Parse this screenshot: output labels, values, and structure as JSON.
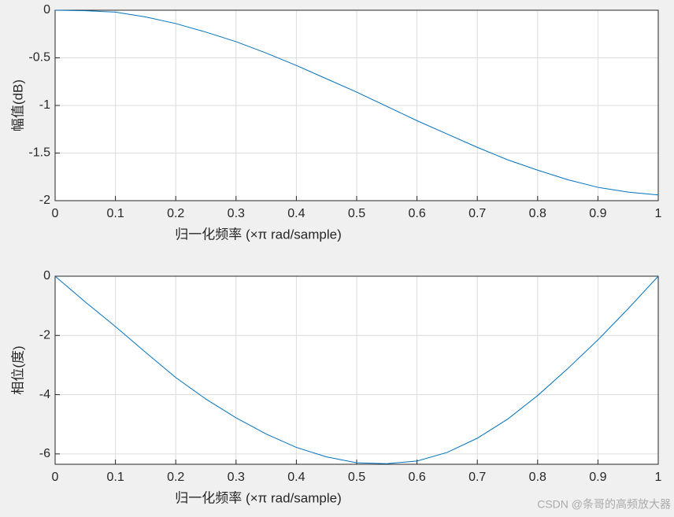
{
  "chart_data": [
    {
      "type": "line",
      "ylabel": "幅值(dB)",
      "xlabel": "归一化频率 (×π rad/sample)",
      "x": [
        0,
        0.05,
        0.1,
        0.15,
        0.2,
        0.25,
        0.3,
        0.35,
        0.4,
        0.45,
        0.5,
        0.55,
        0.6,
        0.65,
        0.7,
        0.75,
        0.8,
        0.85,
        0.9,
        0.95,
        1
      ],
      "values": [
        0,
        -0.005,
        -0.02,
        -0.07,
        -0.14,
        -0.23,
        -0.33,
        -0.45,
        -0.58,
        -0.72,
        -0.86,
        -1.01,
        -1.16,
        -1.3,
        -1.44,
        -1.57,
        -1.68,
        -1.78,
        -1.86,
        -1.91,
        -1.94
      ],
      "color": "#0072bd",
      "xlim": [
        0,
        1
      ],
      "ylim": [
        -2,
        0
      ],
      "xticks": [
        0,
        0.1,
        0.2,
        0.3,
        0.4,
        0.5,
        0.6,
        0.7,
        0.8,
        0.9,
        1
      ],
      "yticks": [
        -2,
        -1.5,
        -1,
        -0.5,
        0
      ],
      "grid": true
    },
    {
      "type": "line",
      "ylabel": "相位(度)",
      "xlabel": "归一化频率 (×π rad/sample)",
      "x": [
        0,
        0.05,
        0.1,
        0.15,
        0.2,
        0.25,
        0.3,
        0.35,
        0.4,
        0.45,
        0.5,
        0.55,
        0.6,
        0.65,
        0.7,
        0.75,
        0.8,
        0.85,
        0.9,
        0.95,
        1
      ],
      "values": [
        0,
        -0.87,
        -1.7,
        -2.57,
        -3.42,
        -4.15,
        -4.78,
        -5.33,
        -5.78,
        -6.1,
        -6.3,
        -6.33,
        -6.24,
        -5.95,
        -5.47,
        -4.83,
        -4.03,
        -3.12,
        -2.15,
        -1.1,
        0
      ],
      "color": "#0072bd",
      "xlim": [
        0,
        1
      ],
      "ylim": [
        -6.35,
        0
      ],
      "xticks": [
        0,
        0.1,
        0.2,
        0.3,
        0.4,
        0.5,
        0.6,
        0.7,
        0.8,
        0.9,
        1
      ],
      "yticks": [
        -6,
        -4,
        -2,
        0
      ],
      "grid": true
    }
  ],
  "watermark": "CSDN @条哥的高频放大器"
}
